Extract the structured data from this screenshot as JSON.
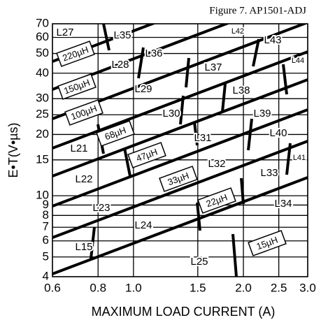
{
  "chart_data": {
    "type": "nomograph",
    "title": "Figure 7. AP1501-ADJ",
    "x_label": "MAXIMUM LOAD CURRENT (A)",
    "y_label": "E•T(V•µs)",
    "log_x": true,
    "log_y": true,
    "grid": true,
    "xlim": [
      0.6,
      3.0
    ],
    "ylim": [
      4,
      70
    ],
    "xticks": [
      0.6,
      0.8,
      {
        "value": 1,
        "label": "1.0"
      },
      1.5,
      {
        "value": 2,
        "label": "2.0"
      },
      2.5,
      {
        "value": 3,
        "label": "3.0"
      }
    ],
    "yticks": [
      4,
      5,
      6,
      7,
      8,
      9,
      10,
      15,
      20,
      25,
      30,
      40,
      50,
      60,
      70
    ],
    "regions": [
      "L27",
      "L35",
      "L42",
      "L43",
      "L36",
      "L28",
      "L37",
      "L44",
      "L29",
      "L38",
      "L30",
      "L39",
      "L31",
      "L40",
      "L21",
      "L32",
      "L41",
      "L22",
      "L33",
      "L23",
      "L34",
      "L24",
      "L15",
      "L25"
    ],
    "inductors": [
      "220µH",
      "150µH",
      "100µH",
      "68µH",
      "47µH",
      "33µH",
      "22µH",
      "15µH"
    ]
  }
}
